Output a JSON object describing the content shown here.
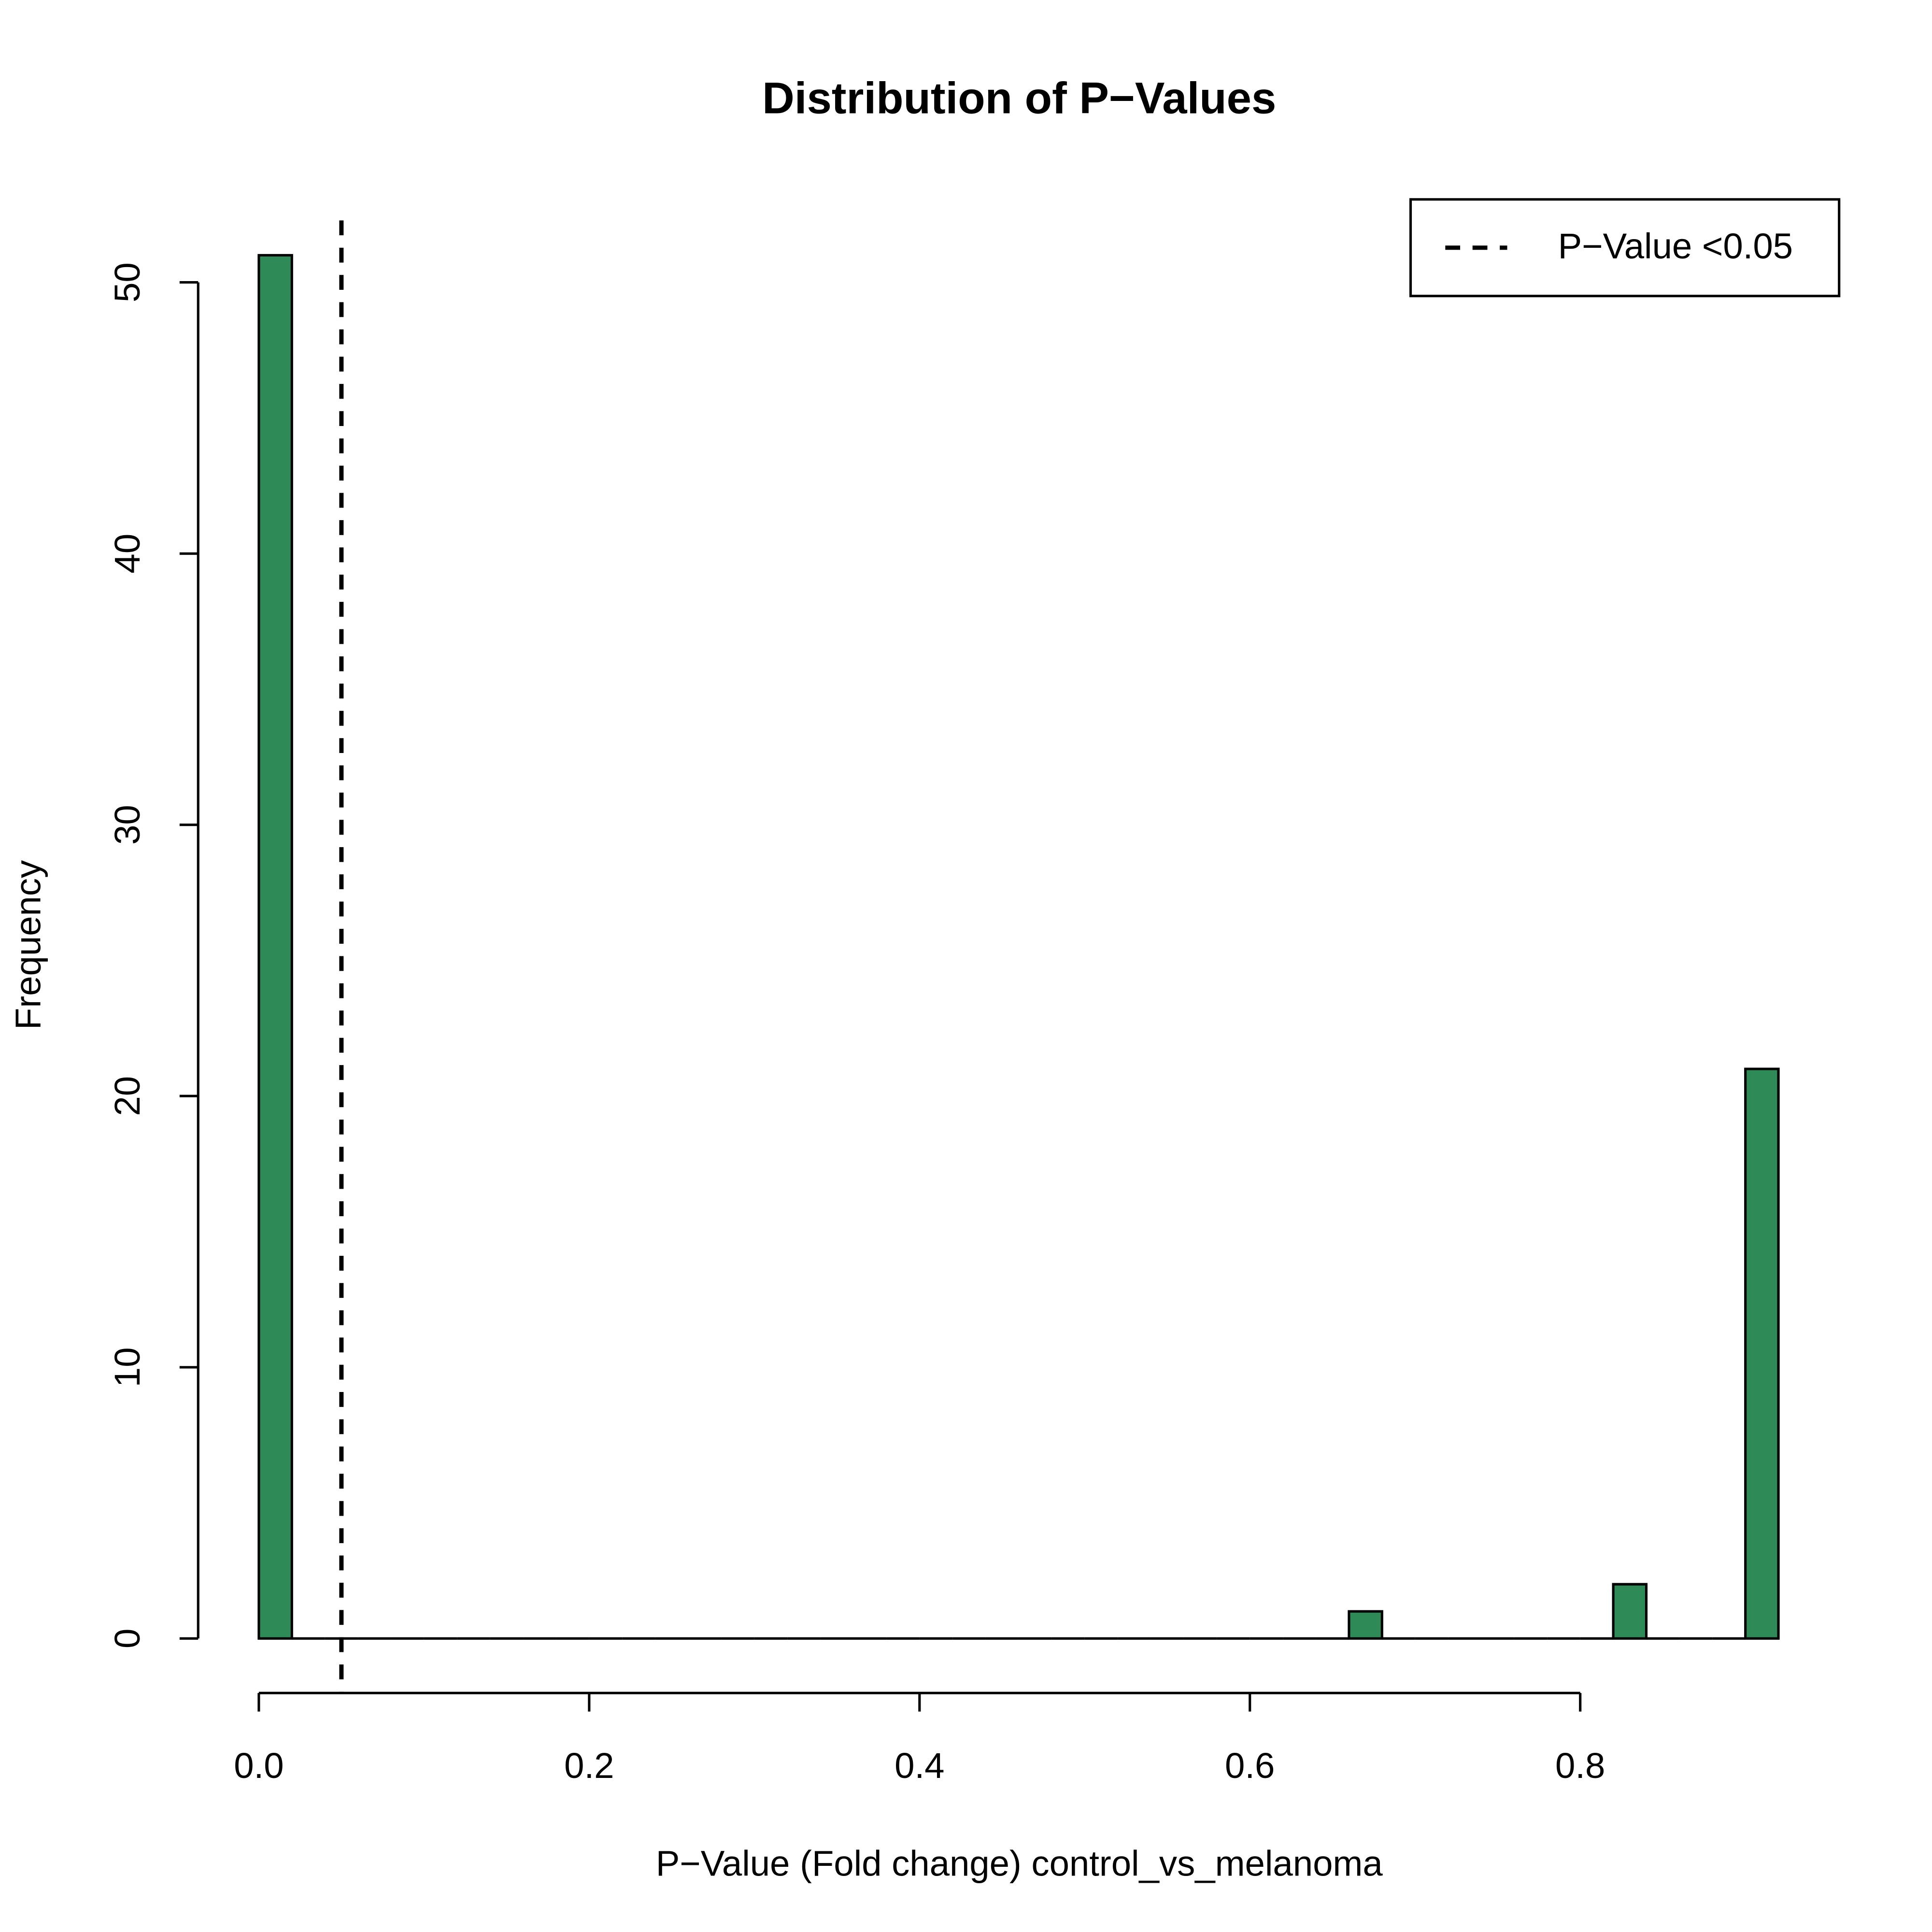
{
  "chart_data": {
    "type": "histogram",
    "title": "Distribution of P−Values",
    "x_label": "P−Value (Fold change) control_vs_melanoma",
    "y_label": "Frequency",
    "bins": [
      0,
      0.02,
      0.04,
      0.06,
      0.08,
      0.1,
      0.12,
      0.14,
      0.16,
      0.18,
      0.2,
      0.22,
      0.24,
      0.26,
      0.28,
      0.3,
      0.32,
      0.34,
      0.36,
      0.38,
      0.4,
      0.42,
      0.44,
      0.46,
      0.48,
      0.5,
      0.52,
      0.54,
      0.56,
      0.58,
      0.6,
      0.62,
      0.64,
      0.66,
      0.68,
      0.7,
      0.72,
      0.74,
      0.76,
      0.78,
      0.8,
      0.82,
      0.84,
      0.86,
      0.88,
      0.9,
      0.92
    ],
    "values": [
      51,
      0,
      0,
      0,
      0,
      0,
      0,
      0,
      0,
      0,
      0,
      0,
      0,
      0,
      0,
      0,
      0,
      0,
      0,
      0,
      0,
      0,
      0,
      0,
      0,
      0,
      0,
      0,
      0,
      0,
      0,
      0,
      0,
      1,
      0,
      0,
      0,
      0,
      0,
      0,
      0,
      2,
      0,
      0,
      0,
      21
    ],
    "color": "#2e8b57",
    "xlim": [
      0,
      0.92
    ],
    "ylim": [
      0,
      51
    ],
    "xticks": [
      {
        "value": 0,
        "label": "0.0"
      },
      0.2,
      0.4,
      0.6,
      0.8
    ],
    "yticks": [
      0,
      10,
      20,
      30,
      40,
      50
    ],
    "reference_line": {
      "name": "P−Value <0.05",
      "x": 0.05,
      "style": "dashed",
      "color": "#000000"
    },
    "legend_position": "top-right"
  }
}
